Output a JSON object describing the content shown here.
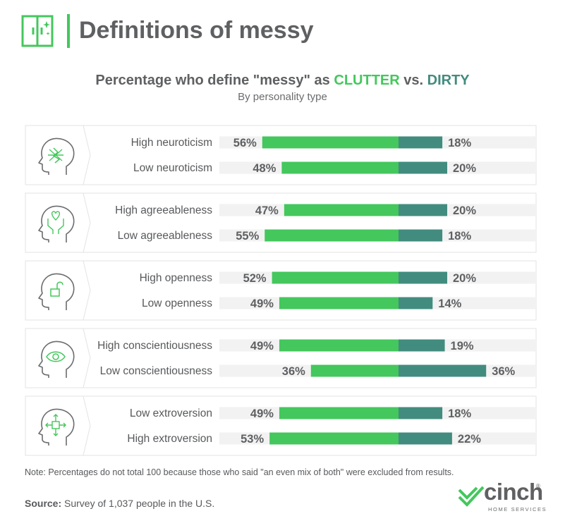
{
  "header": {
    "title": "Definitions of messy",
    "icon": "window-sparkle-icon"
  },
  "colors": {
    "clutter": "#44c75c",
    "dirty": "#428c7f",
    "track": "#f2f2f2",
    "text": "#5f6062",
    "panel_border": "#e3e3e3"
  },
  "chart_data": {
    "type": "bar",
    "orientation": "horizontal",
    "stacked": "diverging",
    "title": "Percentage who define \"messy\" as CLUTTER vs. DIRTY",
    "title_parts": {
      "lead": "Percentage who define \"messy\" as ",
      "clutter": "CLUTTER",
      "mid": " vs. ",
      "dirty": "DIRTY"
    },
    "subtitle": "By personality type",
    "groups": [
      {
        "icon": "head-lightning-icon",
        "rows": [
          {
            "label": "High neuroticism",
            "clutter": 56,
            "dirty": 18
          },
          {
            "label": "Low neuroticism",
            "clutter": 48,
            "dirty": 20
          }
        ]
      },
      {
        "icon": "head-hands-heart-icon",
        "rows": [
          {
            "label": "High agreeableness",
            "clutter": 47,
            "dirty": 20
          },
          {
            "label": "Low agreeableness",
            "clutter": 55,
            "dirty": 18
          }
        ]
      },
      {
        "icon": "head-open-lock-icon",
        "rows": [
          {
            "label": "High openness",
            "clutter": 52,
            "dirty": 20
          },
          {
            "label": "Low openness",
            "clutter": 49,
            "dirty": 14
          }
        ]
      },
      {
        "icon": "head-eye-icon",
        "rows": [
          {
            "label": "High conscientiousness",
            "clutter": 49,
            "dirty": 19
          },
          {
            "label": "Low conscientiousness",
            "clutter": 36,
            "dirty": 36
          }
        ]
      },
      {
        "icon": "head-arrows-icon",
        "rows": [
          {
            "label": "Low extroversion",
            "clutter": 49,
            "dirty": 18
          },
          {
            "label": "High extroversion",
            "clutter": 53,
            "dirty": 22
          }
        ]
      }
    ],
    "series": [
      {
        "name": "CLUTTER",
        "color": "#44c75c"
      },
      {
        "name": "DIRTY",
        "color": "#428c7f"
      }
    ]
  },
  "footer": {
    "note": "Note: Percentages do not total 100 because those who said \"an even mix of both\" were excluded from results.",
    "source_label": "Source:",
    "source_text": " Survey of 1,037 people in the U.S."
  },
  "logo": {
    "word": "cinch",
    "reg": "®",
    "sub": "HOME SERVICES"
  }
}
